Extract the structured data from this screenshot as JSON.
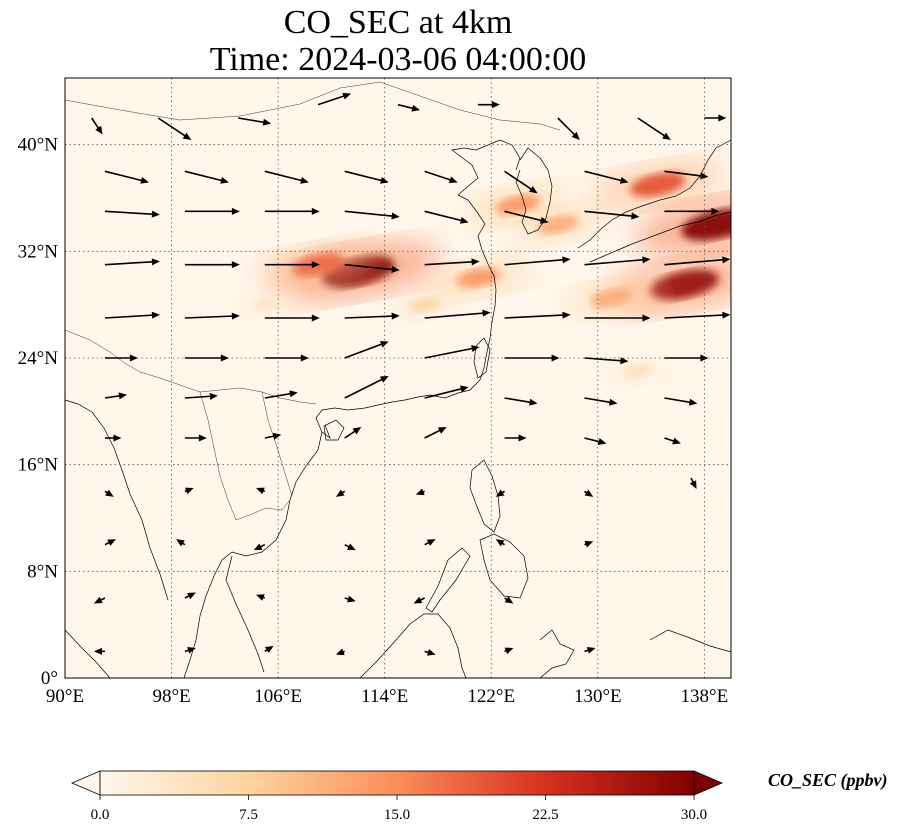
{
  "title": {
    "line1": "CO_SEC at 4km",
    "line2": "Time: 2024-03-06 04:00:00"
  },
  "map": {
    "type": "filled-contour map with wind vectors",
    "extent": {
      "lon": [
        90,
        140
      ],
      "lat": [
        0,
        45
      ]
    },
    "gridlines": "dotted",
    "x_ticks": [
      "90°E",
      "98°E",
      "106°E",
      "114°E",
      "122°E",
      "130°E",
      "138°E"
    ],
    "y_ticks": [
      "0°",
      "8°N",
      "16°N",
      "24°N",
      "32°N",
      "40°N"
    ],
    "colormap": "OrRd",
    "colors": {
      "low": "#fff7ec",
      "mid": "#fdbb84",
      "high": "#d7301f",
      "max": "#7f0000",
      "coastline": "#000000"
    }
  },
  "colorbar": {
    "label": "CO_SEC (ppbv)",
    "min": 0.0,
    "max": 30.0,
    "extend": "both",
    "ticks": [
      "0.0",
      "7.5",
      "15.0",
      "22.5",
      "30.0"
    ]
  },
  "chart_data": {
    "type": "heatmap",
    "variable": "CO_SEC",
    "units": "ppbv",
    "level": "4km",
    "time": "2024-03-06 04:00:00",
    "xlim": [
      90,
      140
    ],
    "ylim": [
      0,
      45
    ],
    "plumes": [
      {
        "lon": 112,
        "lat": 30.5,
        "value": 30
      },
      {
        "lon": 109,
        "lat": 31,
        "value": 18
      },
      {
        "lon": 121,
        "lat": 30,
        "value": 14
      },
      {
        "lon": 124,
        "lat": 35.5,
        "value": 14
      },
      {
        "lon": 127,
        "lat": 34,
        "value": 12
      },
      {
        "lon": 134.5,
        "lat": 37,
        "value": 20
      },
      {
        "lon": 139,
        "lat": 34,
        "value": 30
      },
      {
        "lon": 136.5,
        "lat": 29.5,
        "value": 28
      },
      {
        "lon": 131,
        "lat": 28.5,
        "value": 12
      },
      {
        "lon": 117,
        "lat": 28,
        "value": 7
      },
      {
        "lon": 105,
        "lat": 28,
        "value": 4
      },
      {
        "lon": 133,
        "lat": 23,
        "value": 5
      }
    ],
    "wind": [
      {
        "lon": 92,
        "lat": 42,
        "u": 1,
        "v": -1.5
      },
      {
        "lon": 97,
        "lat": 42,
        "u": 3,
        "v": -2
      },
      {
        "lon": 103,
        "lat": 42,
        "u": 3,
        "v": -0.5
      },
      {
        "lon": 109,
        "lat": 43,
        "u": 3,
        "v": 1
      },
      {
        "lon": 115,
        "lat": 43,
        "u": 2,
        "v": -0.5
      },
      {
        "lon": 121,
        "lat": 43,
        "u": 2,
        "v": 0
      },
      {
        "lon": 127,
        "lat": 42,
        "u": 2,
        "v": -2
      },
      {
        "lon": 133,
        "lat": 42,
        "u": 3,
        "v": -2
      },
      {
        "lon": 138,
        "lat": 42,
        "u": 2,
        "v": 0
      },
      {
        "lon": 93,
        "lat": 38,
        "u": 4,
        "v": -1
      },
      {
        "lon": 99,
        "lat": 38,
        "u": 4,
        "v": -1
      },
      {
        "lon": 105,
        "lat": 38,
        "u": 4,
        "v": -1
      },
      {
        "lon": 111,
        "lat": 38,
        "u": 4,
        "v": -1
      },
      {
        "lon": 117,
        "lat": 38,
        "u": 3,
        "v": -1
      },
      {
        "lon": 123,
        "lat": 38,
        "u": 3,
        "v": -2
      },
      {
        "lon": 129,
        "lat": 38,
        "u": 4,
        "v": -1
      },
      {
        "lon": 135,
        "lat": 38,
        "u": 4,
        "v": -0.5
      },
      {
        "lon": 93,
        "lat": 35,
        "u": 5,
        "v": -0.3
      },
      {
        "lon": 99,
        "lat": 35,
        "u": 5,
        "v": 0
      },
      {
        "lon": 105,
        "lat": 35,
        "u": 5,
        "v": 0
      },
      {
        "lon": 111,
        "lat": 35,
        "u": 5,
        "v": -0.5
      },
      {
        "lon": 117,
        "lat": 35,
        "u": 4,
        "v": -1
      },
      {
        "lon": 123,
        "lat": 35,
        "u": 4,
        "v": -1
      },
      {
        "lon": 129,
        "lat": 35,
        "u": 5,
        "v": -0.5
      },
      {
        "lon": 135,
        "lat": 35,
        "u": 5,
        "v": 0
      },
      {
        "lon": 93,
        "lat": 31,
        "u": 5,
        "v": 0.3
      },
      {
        "lon": 99,
        "lat": 31,
        "u": 5,
        "v": 0
      },
      {
        "lon": 105,
        "lat": 31,
        "u": 5,
        "v": 0
      },
      {
        "lon": 111,
        "lat": 31,
        "u": 5,
        "v": -0.5
      },
      {
        "lon": 117,
        "lat": 31,
        "u": 5,
        "v": 0.3
      },
      {
        "lon": 123,
        "lat": 31,
        "u": 6,
        "v": 0.5
      },
      {
        "lon": 129,
        "lat": 31,
        "u": 6,
        "v": 0.5
      },
      {
        "lon": 135,
        "lat": 31,
        "u": 6,
        "v": 0.5
      },
      {
        "lon": 93,
        "lat": 27,
        "u": 5,
        "v": 0.3
      },
      {
        "lon": 99,
        "lat": 27,
        "u": 5,
        "v": 0.2
      },
      {
        "lon": 105,
        "lat": 27,
        "u": 5,
        "v": 0
      },
      {
        "lon": 111,
        "lat": 27,
        "u": 5,
        "v": 0.2
      },
      {
        "lon": 117,
        "lat": 27,
        "u": 6,
        "v": 0.5
      },
      {
        "lon": 123,
        "lat": 27,
        "u": 6,
        "v": 0.3
      },
      {
        "lon": 129,
        "lat": 27,
        "u": 6,
        "v": 0
      },
      {
        "lon": 135,
        "lat": 27,
        "u": 6,
        "v": 0.3
      },
      {
        "lon": 93,
        "lat": 24,
        "u": 3,
        "v": 0
      },
      {
        "lon": 99,
        "lat": 24,
        "u": 4,
        "v": 0
      },
      {
        "lon": 105,
        "lat": 24,
        "u": 4,
        "v": 0
      },
      {
        "lon": 111,
        "lat": 24,
        "u": 4,
        "v": 1.5
      },
      {
        "lon": 117,
        "lat": 24,
        "u": 5,
        "v": 1
      },
      {
        "lon": 123,
        "lat": 24,
        "u": 5,
        "v": 0
      },
      {
        "lon": 129,
        "lat": 24,
        "u": 4,
        "v": -0.3
      },
      {
        "lon": 135,
        "lat": 24,
        "u": 4,
        "v": 0
      },
      {
        "lon": 93,
        "lat": 21,
        "u": 2,
        "v": 0.3
      },
      {
        "lon": 99,
        "lat": 21,
        "u": 3,
        "v": 0.2
      },
      {
        "lon": 105,
        "lat": 21,
        "u": 3,
        "v": 0.5
      },
      {
        "lon": 111,
        "lat": 21,
        "u": 4,
        "v": 2
      },
      {
        "lon": 117,
        "lat": 21,
        "u": 4,
        "v": 1
      },
      {
        "lon": 123,
        "lat": 21,
        "u": 3,
        "v": -0.5
      },
      {
        "lon": 129,
        "lat": 21,
        "u": 3,
        "v": -0.5
      },
      {
        "lon": 135,
        "lat": 21,
        "u": 3,
        "v": -0.5
      },
      {
        "lon": 93,
        "lat": 18,
        "u": 1.5,
        "v": 0
      },
      {
        "lon": 99,
        "lat": 18,
        "u": 2,
        "v": 0
      },
      {
        "lon": 105,
        "lat": 18,
        "u": 1.5,
        "v": 0.3
      },
      {
        "lon": 111,
        "lat": 18,
        "u": 1.5,
        "v": 1
      },
      {
        "lon": 117,
        "lat": 18,
        "u": 2,
        "v": 1
      },
      {
        "lon": 123,
        "lat": 18,
        "u": 2,
        "v": 0
      },
      {
        "lon": 129,
        "lat": 18,
        "u": 2,
        "v": -0.5
      },
      {
        "lon": 135,
        "lat": 18,
        "u": 1.5,
        "v": -0.5
      },
      {
        "lon": 93,
        "lat": 14,
        "u": 0.8,
        "v": -0.5
      },
      {
        "lon": 99,
        "lat": 14,
        "u": 0.8,
        "v": 0.3
      },
      {
        "lon": 105,
        "lat": 14,
        "u": -0.8,
        "v": 0.3
      },
      {
        "lon": 111,
        "lat": 14,
        "u": -0.8,
        "v": -0.5
      },
      {
        "lon": 117,
        "lat": 14,
        "u": -0.8,
        "v": -0.3
      },
      {
        "lon": 123,
        "lat": 14,
        "u": -0.8,
        "v": -0.5
      },
      {
        "lon": 129,
        "lat": 14,
        "u": 0.8,
        "v": -0.5
      },
      {
        "lon": 137,
        "lat": 15,
        "u": 0.5,
        "v": -1
      },
      {
        "lon": 93,
        "lat": 10,
        "u": 1,
        "v": 0.5
      },
      {
        "lon": 99,
        "lat": 10,
        "u": -0.8,
        "v": 0.5
      },
      {
        "lon": 105,
        "lat": 10,
        "u": -1,
        "v": -0.5
      },
      {
        "lon": 111,
        "lat": 10,
        "u": 1,
        "v": -0.5
      },
      {
        "lon": 117,
        "lat": 10,
        "u": 1,
        "v": 0.5
      },
      {
        "lon": 123,
        "lat": 10,
        "u": -0.8,
        "v": 0.5
      },
      {
        "lon": 129,
        "lat": 10,
        "u": 0.8,
        "v": 0.3
      },
      {
        "lon": 93,
        "lat": 6,
        "u": -1,
        "v": -0.5
      },
      {
        "lon": 99,
        "lat": 6,
        "u": 1,
        "v": 0.5
      },
      {
        "lon": 105,
        "lat": 6,
        "u": -0.8,
        "v": 0.3
      },
      {
        "lon": 111,
        "lat": 6,
        "u": 1,
        "v": -0.3
      },
      {
        "lon": 117,
        "lat": 6,
        "u": -1,
        "v": -0.5
      },
      {
        "lon": 123,
        "lat": 6,
        "u": 0.8,
        "v": -0.5
      },
      {
        "lon": 93,
        "lat": 2,
        "u": -1,
        "v": 0
      },
      {
        "lon": 99,
        "lat": 2,
        "u": 1,
        "v": 0.3
      },
      {
        "lon": 105,
        "lat": 2,
        "u": 0.8,
        "v": 0.5
      },
      {
        "lon": 111,
        "lat": 2,
        "u": -0.8,
        "v": -0.3
      },
      {
        "lon": 117,
        "lat": 2,
        "u": 1,
        "v": -0.3
      },
      {
        "lon": 123,
        "lat": 2,
        "u": 0.8,
        "v": 0.3
      },
      {
        "lon": 129,
        "lat": 2,
        "u": 1,
        "v": 0.3
      }
    ]
  }
}
